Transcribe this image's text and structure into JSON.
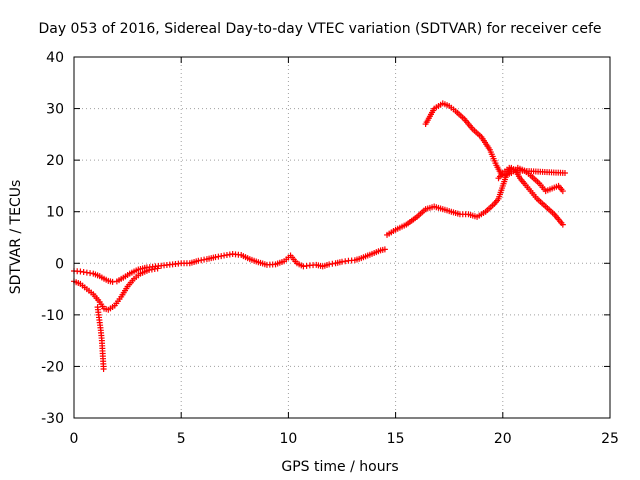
{
  "chart_data": {
    "type": "scatter",
    "title": "Day 053 of 2016, Sidereal Day-to-day VTEC variation (SDTVAR) for receiver cefe",
    "xlabel": "GPS time / hours",
    "ylabel": "SDTVAR / TECUs",
    "xlim": [
      0,
      25
    ],
    "ylim": [
      -30,
      40
    ],
    "xticks": [
      "0",
      "5",
      "10",
      "15",
      "20",
      "25"
    ],
    "yticks": [
      "-30",
      "-20",
      "-10",
      "0",
      "10",
      "20",
      "30",
      "40"
    ],
    "grid": true,
    "marker": "+",
    "color": "#ff0000",
    "series": [
      {
        "name": "cefe",
        "segments": [
          {
            "x": [
              0.0,
              0.3,
              0.6,
              0.9,
              1.2,
              1.4,
              1.6,
              1.8,
              2.0,
              2.3,
              2.6,
              3.0,
              3.4,
              3.8,
              4.2,
              4.6,
              5.0,
              5.4,
              5.8,
              6.2,
              6.6,
              7.0,
              7.4,
              7.8,
              8.2,
              8.6,
              9.0,
              9.4,
              9.8,
              10.1,
              10.4,
              10.7,
              11.0,
              11.3,
              11.6,
              11.9,
              12.2,
              12.5,
              12.8,
              13.1,
              13.4,
              13.7,
              14.0,
              14.3,
              14.5
            ],
            "y": [
              -1.5,
              -1.6,
              -1.8,
              -2.0,
              -2.5,
              -3.0,
              -3.4,
              -3.6,
              -3.5,
              -2.8,
              -2.0,
              -1.2,
              -0.8,
              -0.6,
              -0.4,
              -0.2,
              0.0,
              0.0,
              0.5,
              0.8,
              1.2,
              1.5,
              1.8,
              1.6,
              0.8,
              0.2,
              -0.3,
              -0.2,
              0.4,
              1.5,
              0.0,
              -0.6,
              -0.4,
              -0.3,
              -0.6,
              -0.2,
              0.0,
              0.3,
              0.5,
              0.6,
              1.0,
              1.5,
              2.0,
              2.5,
              2.7
            ]
          },
          {
            "x": [
              0.0,
              0.3,
              0.6,
              0.9,
              1.2,
              1.4,
              1.6,
              1.9,
              2.2,
              2.5,
              2.8,
              3.1,
              3.5,
              3.9
            ],
            "y": [
              -3.5,
              -4.0,
              -5.0,
              -6.0,
              -7.5,
              -8.8,
              -9.0,
              -8.2,
              -6.5,
              -4.5,
              -3.0,
              -2.0,
              -1.3,
              -1.0
            ]
          },
          {
            "x": [
              1.1,
              1.15,
              1.2,
              1.25,
              1.3,
              1.33,
              1.36,
              1.38
            ],
            "y": [
              -8.5,
              -10.0,
              -11.5,
              -13.0,
              -15.0,
              -17.0,
              -19.0,
              -20.5
            ]
          },
          {
            "x": [
              14.6,
              15.0,
              15.5,
              16.0,
              16.4,
              16.8,
              17.2,
              17.6,
              18.0,
              18.4,
              18.8,
              19.2,
              19.6,
              19.8,
              20.0,
              20.2,
              20.4,
              20.6,
              20.8,
              21.0,
              21.3,
              21.6,
              22.0,
              22.4,
              22.8
            ],
            "y": [
              5.5,
              6.5,
              7.5,
              9.0,
              10.5,
              11.0,
              10.5,
              10.0,
              9.5,
              9.5,
              9.0,
              10.0,
              11.5,
              12.5,
              15.0,
              17.5,
              18.5,
              18.0,
              16.5,
              15.5,
              14.0,
              12.5,
              11.0,
              9.5,
              7.5
            ]
          },
          {
            "x": [
              16.4,
              16.6,
              16.8,
              17.0,
              17.2,
              17.5,
              17.8,
              18.2,
              18.6,
              19.0,
              19.4,
              19.7,
              19.9,
              20.1,
              20.4,
              20.7,
              21.0,
              21.3,
              21.7,
              22.0,
              22.3,
              22.6,
              22.8
            ],
            "y": [
              27.0,
              28.5,
              30.0,
              30.5,
              31.0,
              30.5,
              29.5,
              28.0,
              26.0,
              24.5,
              22.0,
              19.0,
              17.5,
              17.0,
              17.5,
              18.5,
              18.0,
              17.0,
              15.5,
              14.0,
              14.5,
              15.0,
              14.0
            ]
          },
          {
            "x": [
              19.8,
              20.0,
              20.3,
              20.6,
              22.9
            ],
            "y": [
              16.5,
              17.5,
              18.5,
              18.0,
              17.5
            ]
          }
        ]
      }
    ]
  }
}
